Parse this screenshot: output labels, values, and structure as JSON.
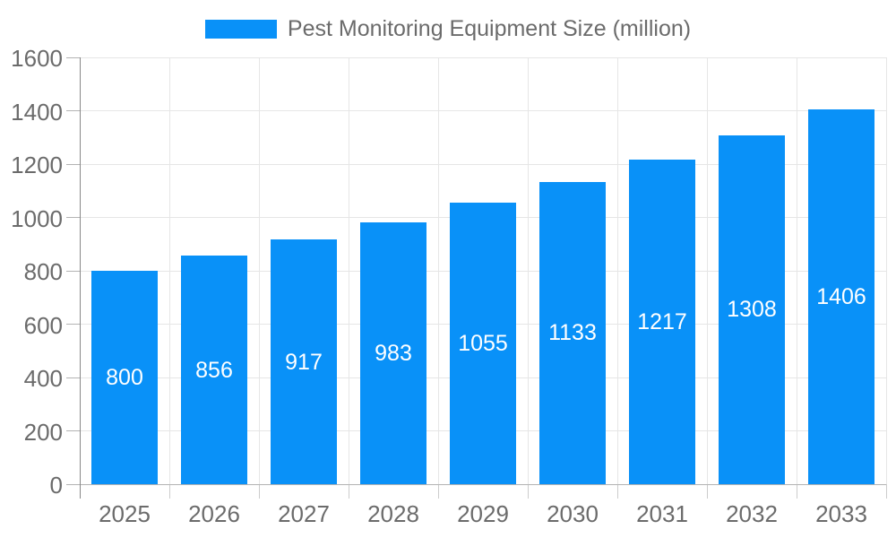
{
  "legend": {
    "label": "Pest Monitoring Equipment Size (million)"
  },
  "chart_data": {
    "type": "bar",
    "title": "Pest Monitoring Equipment Size (million)",
    "series_name": "Pest Monitoring Equipment Size (million)",
    "categories": [
      "2025",
      "2026",
      "2027",
      "2028",
      "2029",
      "2030",
      "2031",
      "2032",
      "2033"
    ],
    "values": [
      800,
      856,
      917,
      983,
      1055,
      1133,
      1217,
      1308,
      1406
    ],
    "value_labels_shown": true,
    "xlabel": "",
    "ylabel": "",
    "ylim": [
      0,
      1600
    ],
    "yticks": [
      0,
      200,
      400,
      600,
      800,
      1000,
      1200,
      1400,
      1600
    ],
    "grid": true,
    "legend_position": "top-center",
    "bar_color": "#0991f8",
    "value_label_color": "#ffffff"
  },
  "colors": {
    "accent_blue": "#0991f8",
    "grid_line": "#e6e6e6",
    "x_baseline": "#b3b3b3",
    "y_axis_line": "#878787",
    "tick_mark": "#cccccc",
    "axis_text": "#6b6b6b",
    "value_text": "#ffffff",
    "background": "#ffffff"
  }
}
